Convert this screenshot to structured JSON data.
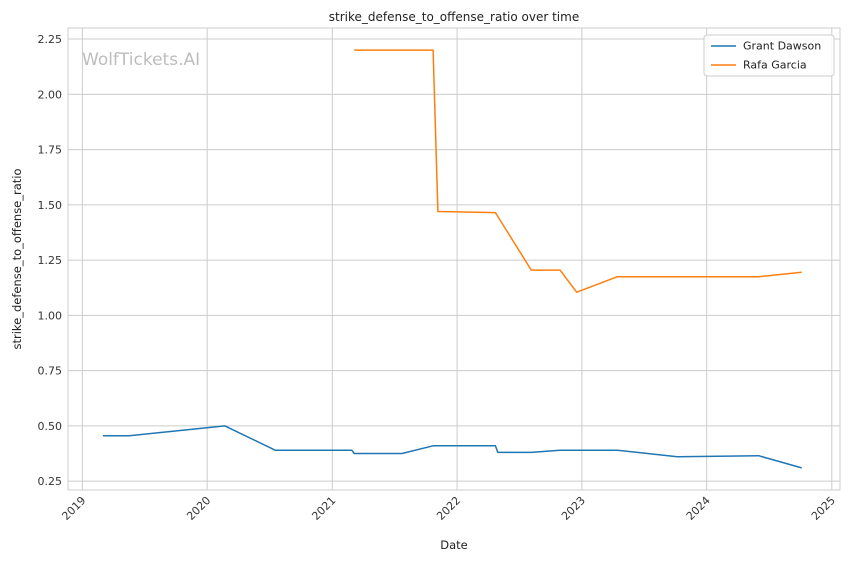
{
  "chart_data": {
    "type": "line",
    "title": "strike_defense_to_offense_ratio over time",
    "xlabel": "Date",
    "ylabel": "strike_defense_to_offense_ratio",
    "watermark": "WolfTickets.AI",
    "x_type": "date",
    "xlim": [
      "2018-11-20",
      "2025-01-25"
    ],
    "ylim": [
      0.21,
      2.3
    ],
    "x_ticks": [
      "2019",
      "2020",
      "2021",
      "2022",
      "2023",
      "2024",
      "2025"
    ],
    "y_ticks": [
      "0.25",
      "0.50",
      "0.75",
      "1.00",
      "1.25",
      "1.50",
      "1.75",
      "2.00",
      "2.25"
    ],
    "grid": true,
    "legend_position": "top-right",
    "colors": {
      "Grant Dawson": "#1f77b4",
      "Rafa Garcia": "#ff7f0e",
      "grid": "#cccccc"
    },
    "series": [
      {
        "name": "Grant Dawson",
        "points": [
          [
            "2019-03-02",
            0.455
          ],
          [
            "2019-05-18",
            0.455
          ],
          [
            "2020-02-22",
            0.5
          ],
          [
            "2020-07-18",
            0.39
          ],
          [
            "2021-02-27",
            0.39
          ],
          [
            "2021-03-06",
            0.375
          ],
          [
            "2021-07-24",
            0.375
          ],
          [
            "2021-10-23",
            0.41
          ],
          [
            "2022-04-23",
            0.41
          ],
          [
            "2022-04-30",
            0.38
          ],
          [
            "2022-08-06",
            0.38
          ],
          [
            "2022-10-29",
            0.39
          ],
          [
            "2023-04-15",
            0.39
          ],
          [
            "2023-10-07",
            0.36
          ],
          [
            "2024-06-01",
            0.365
          ],
          [
            "2024-10-05",
            0.31
          ]
        ]
      },
      {
        "name": "Rafa Garcia",
        "points": [
          [
            "2021-03-06",
            2.2
          ],
          [
            "2021-10-23",
            2.2
          ],
          [
            "2021-11-06",
            1.47
          ],
          [
            "2022-04-23",
            1.465
          ],
          [
            "2022-08-06",
            1.205
          ],
          [
            "2022-10-29",
            1.205
          ],
          [
            "2022-12-17",
            1.105
          ],
          [
            "2023-04-15",
            1.175
          ],
          [
            "2024-06-01",
            1.175
          ],
          [
            "2024-10-05",
            1.195
          ]
        ]
      }
    ]
  }
}
